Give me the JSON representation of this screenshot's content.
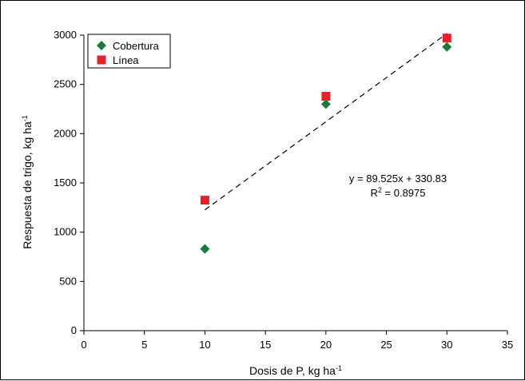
{
  "chart_data": {
    "type": "scatter",
    "title": "",
    "xlabel": "Dosis de P, kg ha",
    "xlabel_sup": "-1",
    "ylabel": "Respuesta de trigo, kg ha",
    "ylabel_sup": "-1",
    "xlim": [
      0,
      35
    ],
    "ylim": [
      0,
      3000
    ],
    "xticks": [
      0,
      5,
      10,
      15,
      20,
      25,
      30,
      35
    ],
    "yticks": [
      0,
      500,
      1000,
      1500,
      2000,
      2500,
      3000
    ],
    "grid": false,
    "legend_position": "top-left",
    "series": [
      {
        "name": "Cobertura",
        "marker": "diamond",
        "color": "#1a7a3c",
        "points": [
          {
            "x": 10,
            "y": 830
          },
          {
            "x": 20,
            "y": 2300
          },
          {
            "x": 30,
            "y": 2880
          }
        ]
      },
      {
        "name": "Línea",
        "marker": "square",
        "color": "#e8202a",
        "points": [
          {
            "x": 10,
            "y": 1325
          },
          {
            "x": 20,
            "y": 2380
          },
          {
            "x": 30,
            "y": 2970
          }
        ]
      }
    ],
    "trendline": {
      "style": "dashed",
      "color": "#000000",
      "slope": 89.525,
      "intercept": 330.83,
      "x_range": [
        10,
        30
      ]
    },
    "annotations": {
      "equation": "y = 89.525x + 330.83",
      "r2_prefix": "R",
      "r2_sup": "2",
      "r2_value": " = 0.8975"
    }
  }
}
